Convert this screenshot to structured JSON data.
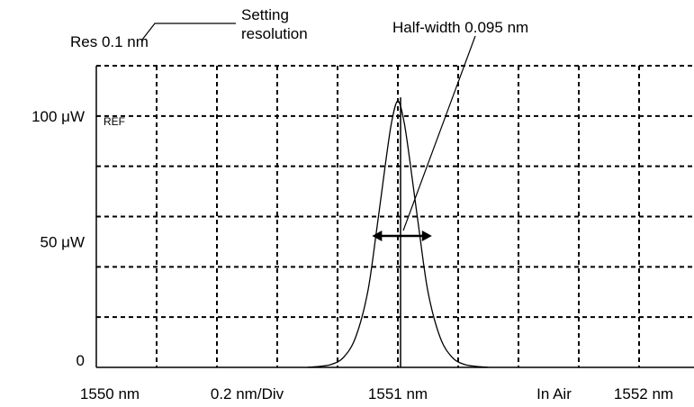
{
  "chart_data": {
    "type": "line",
    "title": "",
    "xlabel": "",
    "ylabel": "",
    "x_range_nm": [
      1550,
      1552
    ],
    "y_range_uW": [
      0,
      120
    ],
    "grid": true,
    "x_tick_labels": [
      "1550 nm",
      "0.2 nm/Div",
      "1551 nm",
      "In Air",
      "1552 nm"
    ],
    "y_tick_labels": [
      "0",
      "50  μW",
      "100 μW"
    ],
    "ref_label": "REF",
    "resolution_label": "Res  0.1  nm",
    "resolution_note": "Setting\nresolution",
    "halfwidth_label": "Half-width 0.095 nm",
    "series": [
      {
        "peak_wavelength_nm": 1551.0,
        "peak_power_uW": 106,
        "half_width_nm": 0.095,
        "x": [
          1550.7,
          1550.74,
          1550.78,
          1550.82,
          1550.86,
          1550.9,
          1550.93,
          1550.96,
          1550.98,
          1551.0,
          1551.02,
          1551.04,
          1551.07,
          1551.1,
          1551.14,
          1551.18,
          1551.22,
          1551.26,
          1551.3
        ],
        "y": [
          0,
          0.4,
          1.2,
          4.0,
          12,
          30,
          55,
          82,
          98,
          106,
          98,
          82,
          55,
          30,
          12,
          4.0,
          1.2,
          0.4,
          0
        ]
      }
    ]
  }
}
